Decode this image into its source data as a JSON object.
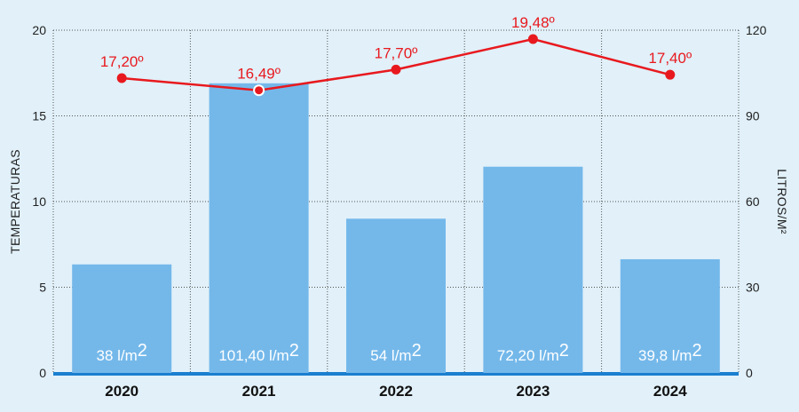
{
  "chart_data": {
    "type": "bar",
    "categories": [
      "2020",
      "2021",
      "2022",
      "2023",
      "2024"
    ],
    "series": [
      {
        "type": "bar",
        "axis": "right",
        "values": [
          38,
          101.4,
          54,
          72.2,
          39.8
        ],
        "labels": [
          "38 l/m",
          "101,40 l/m",
          "54 l/m",
          "72,20 l/m",
          "39,8 l/m"
        ],
        "label_superscript": "2",
        "color": "#74b8ea"
      },
      {
        "type": "line",
        "axis": "left",
        "values": [
          17.2,
          16.49,
          17.7,
          19.48,
          17.4
        ],
        "labels": [
          "17,20º",
          "16,49º",
          "17,70º",
          "19,48º",
          "17,40º"
        ],
        "color": "#e8191e"
      }
    ],
    "y_left": {
      "label": "TEMPERATURAS",
      "ylim": [
        0,
        20
      ],
      "ticks": [
        "0",
        "5",
        "10",
        "15",
        "20"
      ]
    },
    "y_right": {
      "label": "LITROS/M²",
      "ylim": [
        0,
        120
      ],
      "ticks": [
        "0",
        "30",
        "60",
        "90",
        "120"
      ]
    },
    "grid": true,
    "colors": {
      "background": "#e1f0f9",
      "baseline": "#1a7fd0",
      "grid": "#555555"
    }
  }
}
